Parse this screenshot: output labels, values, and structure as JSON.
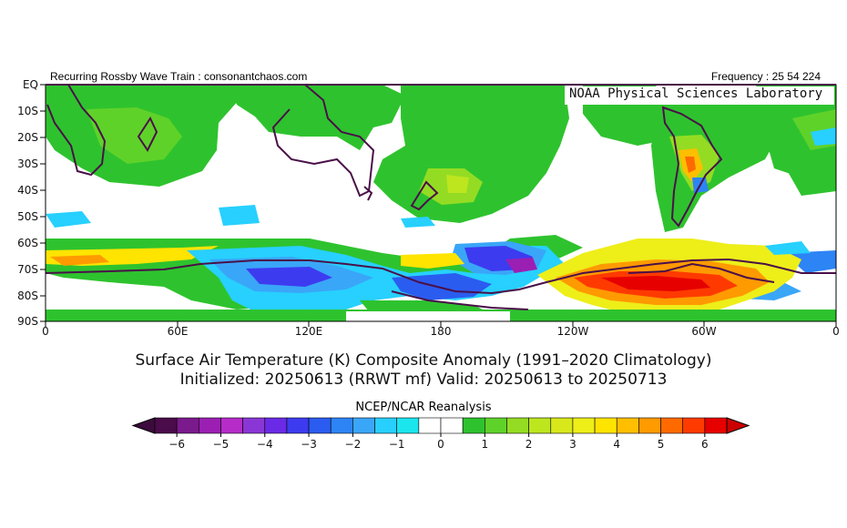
{
  "header": {
    "left": "Recurring Rossby Wave Train : consonantchaos.com",
    "right": "Frequency : 25 54 224",
    "lab": "NOAA Physical Sciences Laboratory"
  },
  "axes": {
    "lat_labels": [
      "EQ",
      "10S",
      "20S",
      "30S",
      "40S",
      "50S",
      "60S",
      "70S",
      "80S",
      "90S"
    ],
    "lon_labels": [
      "0",
      "60E",
      "120E",
      "180",
      "120W",
      "60W",
      "0"
    ]
  },
  "title": {
    "line1": "Surface Air Temperature (K) Composite Anomaly (1991–2020 Climatology)",
    "line2": "Initialized: 20250613 (RRWT mf) Valid: 20250613 to 20250713"
  },
  "colorbar": {
    "title": "NCEP/NCAR Reanalysis",
    "tick_labels": [
      "−6",
      "−5",
      "−4",
      "−3",
      "−2",
      "−1",
      "0",
      "1",
      "2",
      "3",
      "4",
      "5",
      "6"
    ],
    "colors": [
      "#4a0c4a",
      "#7a1a8c",
      "#9b1fb3",
      "#b52cc8",
      "#8a36d6",
      "#6a2ae6",
      "#3d3bf0",
      "#2b5cf0",
      "#2d84f5",
      "#3aa6f8",
      "#27d0ff",
      "#1be6ee",
      "#ffffff",
      "#ffffff",
      "#2ec32e",
      "#5fd22a",
      "#94dc23",
      "#bde61f",
      "#d8e81a",
      "#eeee19",
      "#ffe400",
      "#ffbf00",
      "#ff9a00",
      "#ff6a00",
      "#ff3a00",
      "#e60000"
    ]
  }
}
